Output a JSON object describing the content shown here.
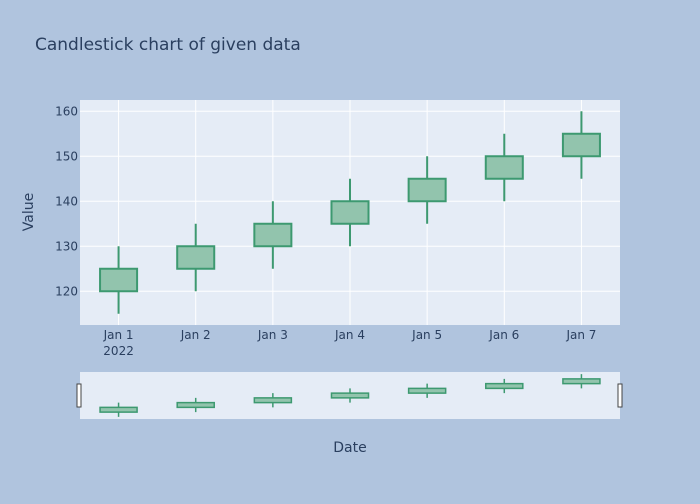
{
  "chart_data": {
    "type": "candlestick",
    "title": "Candlestick chart of given data",
    "xlabel": "Date",
    "ylabel": "Value",
    "x_tick_labels": [
      "Jan 1",
      "Jan 2",
      "Jan 3",
      "Jan 4",
      "Jan 5",
      "Jan 6",
      "Jan 7"
    ],
    "x_year_label": "2022",
    "dates": [
      "2022-01-01",
      "2022-01-02",
      "2022-01-03",
      "2022-01-04",
      "2022-01-05",
      "2022-01-06",
      "2022-01-07"
    ],
    "open": [
      120,
      125,
      130,
      135,
      140,
      145,
      150
    ],
    "high": [
      130,
      135,
      140,
      145,
      150,
      155,
      160
    ],
    "low": [
      115,
      120,
      125,
      130,
      135,
      140,
      145
    ],
    "close": [
      125,
      130,
      135,
      140,
      145,
      150,
      155
    ],
    "ylim": [
      112.5,
      162.5
    ],
    "y_ticks": [
      120,
      130,
      140,
      150,
      160
    ],
    "grid": true,
    "rangeslider": true,
    "colors": {
      "increasing_line": "#3d9970",
      "increasing_fill": "#92c4ad",
      "plot_bg": "#e5ecf6",
      "paper_bg": "#b0c4de",
      "text": "#2a3f5f"
    }
  }
}
